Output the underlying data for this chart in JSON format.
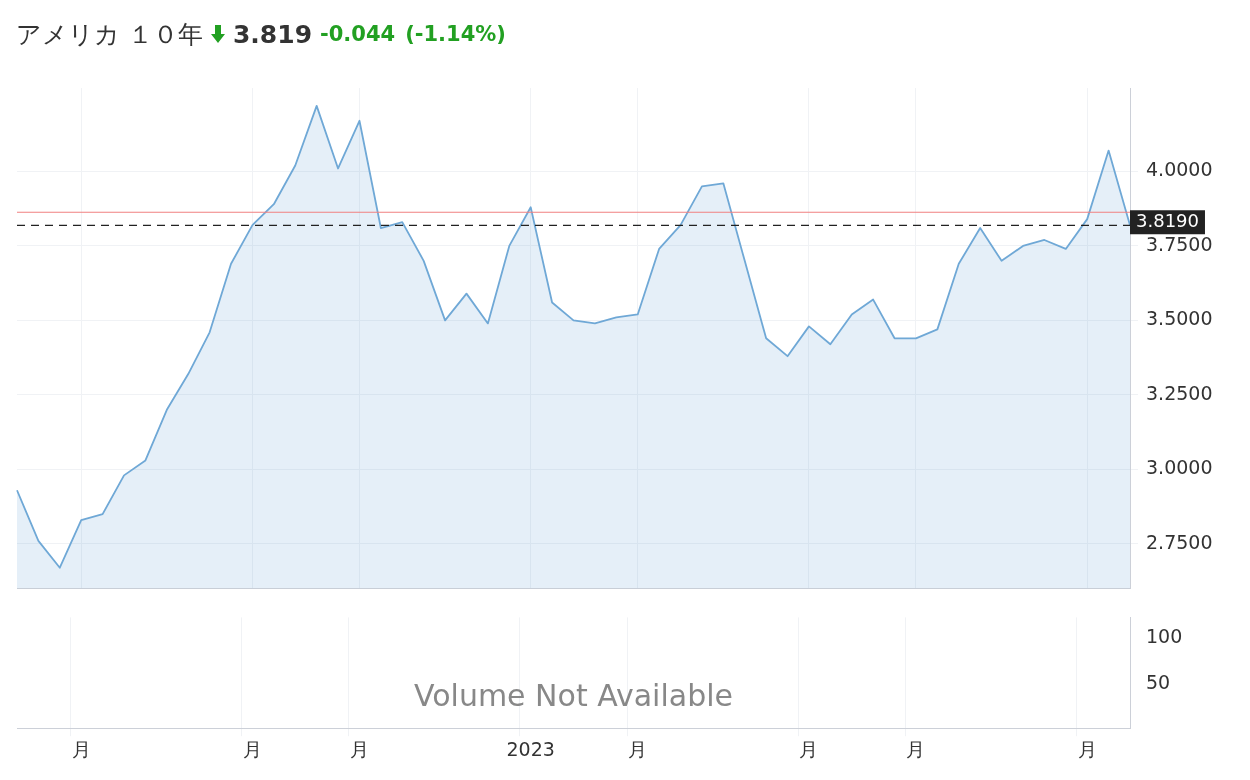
{
  "chart_data": [
    {
      "type": "area",
      "title": "アメリカ １０年",
      "subtitle": "3.819",
      "annotations": [
        "-0.044",
        "(-1.14%)"
      ],
      "categories": [
        null,
        null,
        null,
        null,
        null,
        null,
        null,
        null,
        null,
        null,
        null,
        null,
        null,
        null,
        null,
        null,
        null,
        null,
        null,
        null,
        null,
        null,
        null,
        null,
        null,
        null,
        null,
        null,
        null,
        null,
        null,
        null,
        null,
        null,
        null,
        null,
        null,
        null,
        null,
        null,
        null,
        null,
        null,
        null,
        null,
        null,
        null,
        null,
        null,
        null,
        null,
        null,
        null
      ],
      "series": [
        {
          "color": "#6fa8d6",
          "values": [
            2.93,
            2.76,
            2.67,
            2.83,
            2.85,
            2.98,
            3.03,
            3.2,
            3.32,
            3.46,
            3.69,
            3.82,
            3.89,
            4.02,
            4.22,
            4.01,
            4.17,
            3.81,
            3.83,
            3.7,
            3.5,
            3.59,
            3.49,
            3.75,
            3.88,
            3.56,
            3.5,
            3.49,
            3.51,
            3.52,
            3.74,
            3.82,
            3.95,
            3.96,
            3.7,
            3.44,
            3.38,
            3.48,
            3.42,
            3.52,
            3.57,
            3.44,
            3.44,
            3.47,
            3.69,
            3.81,
            3.7,
            3.75,
            3.77,
            3.74,
            3.84,
            4.07,
            3.819
          ]
        }
      ],
      "ylim": [
        2.6,
        4.28
      ],
      "yticks": [
        {
          "value": 2.75,
          "label": "2.7500"
        },
        {
          "value": 3.0,
          "label": "3.0000"
        },
        {
          "value": 3.25,
          "label": "3.2500"
        },
        {
          "value": 3.5,
          "label": "3.5000"
        },
        {
          "value": 3.75,
          "label": "3.7500"
        },
        {
          "value": 4.0,
          "label": "4.0000"
        }
      ],
      "ref_lines": [
        {
          "axis": "y",
          "value": 3.863,
          "color": "#f08080",
          "line_style": "solid"
        },
        {
          "axis": "y",
          "value": 3.819,
          "label": "3.8190",
          "color": "#222222",
          "line_style": "dashed"
        }
      ],
      "grid": true,
      "legend": false,
      "marker": "none",
      "tick_labels": "y"
    },
    {
      "type": "bar",
      "annotations": [
        "Volume Not Available"
      ],
      "values": [
        null,
        null,
        null,
        null,
        null,
        null,
        null,
        null,
        null,
        null,
        null,
        null,
        null,
        null,
        null,
        null,
        null,
        null,
        null,
        null,
        null,
        null,
        null,
        null,
        null,
        null,
        null,
        null,
        null,
        null,
        null,
        null,
        null,
        null,
        null,
        null,
        null,
        null,
        null,
        null,
        null,
        null,
        null,
        null,
        null,
        null,
        null,
        null,
        null,
        null,
        null,
        null,
        null
      ],
      "categories": [
        null,
        null,
        null,
        "月",
        null,
        null,
        null,
        null,
        null,
        null,
        null,
        "月",
        null,
        null,
        null,
        null,
        "月",
        null,
        null,
        null,
        null,
        null,
        null,
        null,
        "2023",
        null,
        null,
        null,
        null,
        "月",
        null,
        null,
        null,
        null,
        null,
        null,
        null,
        "月",
        null,
        null,
        null,
        null,
        "月",
        null,
        null,
        null,
        null,
        null,
        null,
        null,
        "月",
        null,
        null
      ],
      "ylim": [
        2,
        122
      ],
      "yticks": [
        50,
        100
      ],
      "grid": "x"
    }
  ]
}
